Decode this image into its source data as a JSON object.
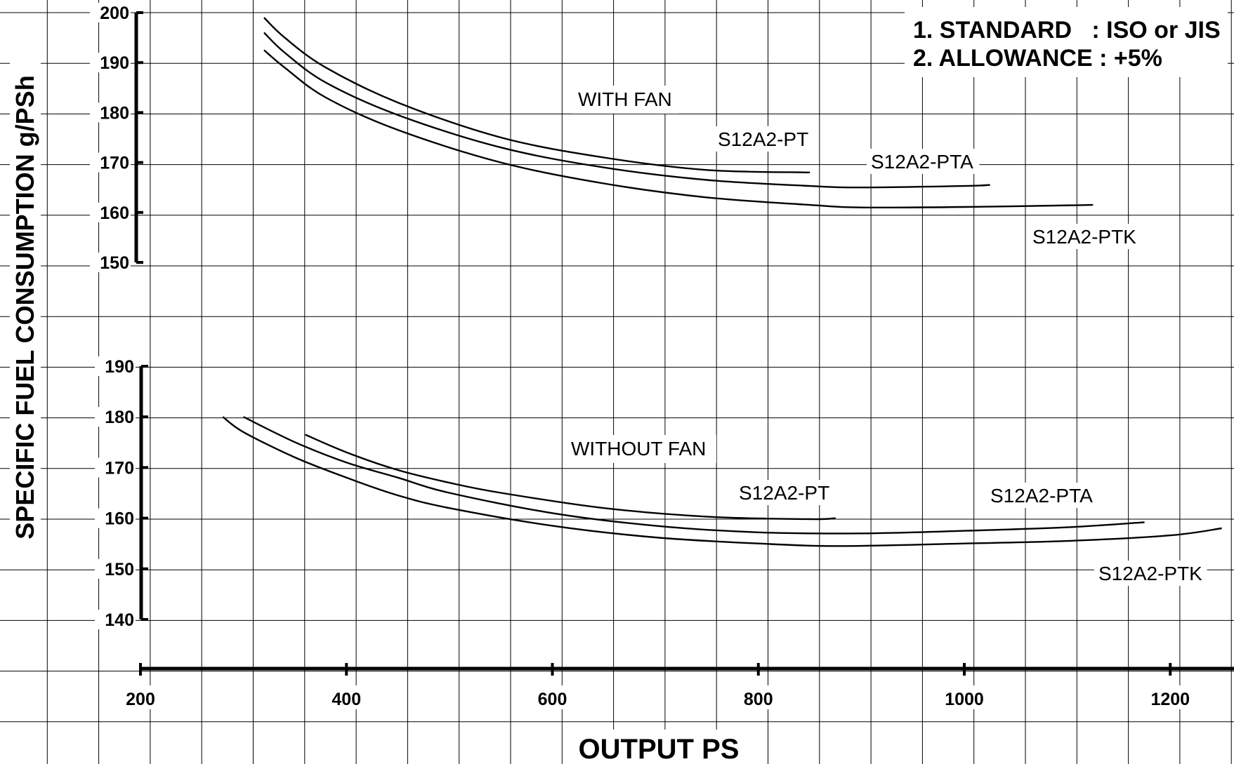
{
  "chart_data": {
    "type": "line",
    "xlabel": "OUTPUT PS",
    "ylabel": "SPECIFIC FUEL CONSUMPTION g/PSh",
    "xlim": [
      200,
      1200
    ],
    "x_ticks": [
      "200",
      "400",
      "600",
      "800",
      "1000",
      "1200"
    ],
    "grid": true,
    "notes": [
      "1. STANDARD   : ISO or JIS",
      "2. ALLOWANCE : +5%"
    ],
    "panels": [
      {
        "title": "WITH FAN",
        "ylim": [
          150,
          200
        ],
        "y_ticks": [
          "200",
          "190",
          "180",
          "170",
          "160",
          "150"
        ],
        "series": [
          {
            "name": "S12A2-PT",
            "x": [
              320,
              340,
              380,
              450,
              550,
              650,
              750,
              850
            ],
            "y": [
              199,
              195,
              189,
              182,
              175,
              171,
              168.5,
              168
            ]
          },
          {
            "name": "S12A2-PTA",
            "x": [
              320,
              340,
              380,
              450,
              550,
              650,
              750,
              850,
              900,
              1000,
              1025
            ],
            "y": [
              196,
              192,
              186,
              179.5,
              173,
              169,
              166.5,
              165.3,
              165,
              165.3,
              165.5
            ]
          },
          {
            "name": "S12A2-PTK",
            "x": [
              320,
              340,
              380,
              450,
              550,
              650,
              750,
              850,
              900,
              1000,
              1125
            ],
            "y": [
              192.5,
              189,
              183,
              176.5,
              170,
              165.8,
              163,
              161.5,
              161,
              161.1,
              161.5
            ]
          }
        ]
      },
      {
        "title": "WITHOUT FAN",
        "ylim": [
          140,
          190
        ],
        "y_ticks": [
          "190",
          "180",
          "170",
          "160",
          "150",
          "140"
        ],
        "series": [
          {
            "name": "S12A2-PT",
            "x": [
              360,
              400,
              450,
              500,
              550,
              650,
              750,
              850,
              875
            ],
            "y": [
              176.5,
              173,
              169.5,
              167,
              165,
              162,
              160.3,
              159.8,
              160
            ]
          },
          {
            "name": "S12A2-PTA",
            "x": [
              300,
              350,
              400,
              450,
              500,
              600,
              700,
              800,
              900,
              1000,
              1100,
              1175
            ],
            "y": [
              180,
              175,
              171,
              168,
              165,
              161,
              158.5,
              157.2,
              157,
              157.5,
              158.2,
              159.2
            ]
          },
          {
            "name": "S12A2-PTK",
            "x": [
              280,
              300,
              350,
              400,
              450,
              500,
              600,
              700,
              800,
              880,
              1000,
              1100,
              1200,
              1250
            ],
            "y": [
              180,
              177,
              172,
              168,
              164.5,
              162,
              158.5,
              156.2,
              155,
              154.5,
              155,
              155.5,
              156.6,
              158
            ]
          }
        ]
      }
    ]
  }
}
